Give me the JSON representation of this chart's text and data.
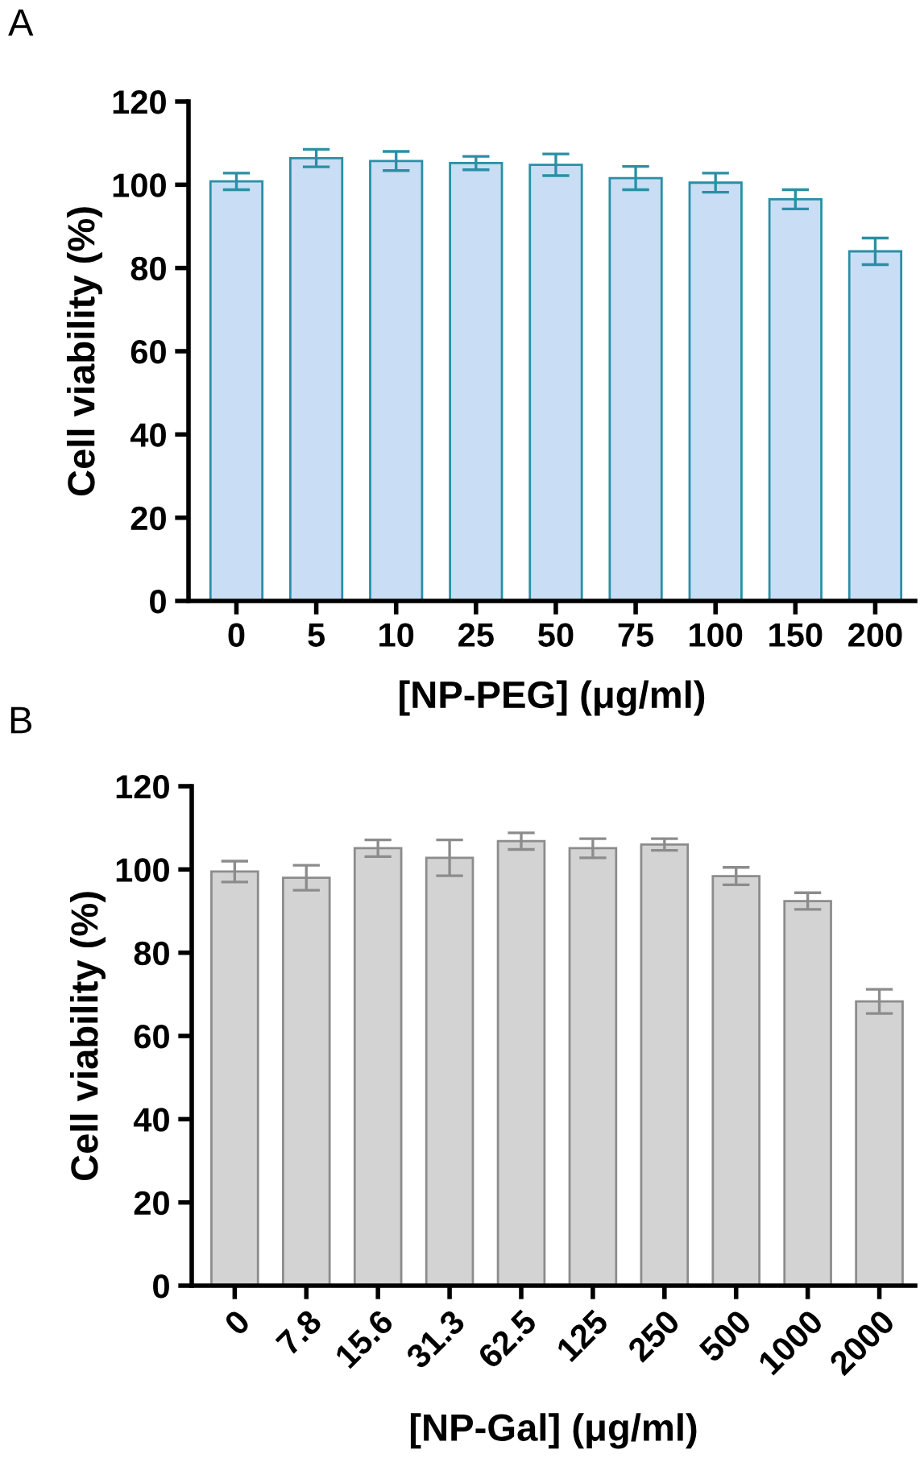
{
  "chart_data": [
    {
      "type": "bar",
      "annotations": [
        "A"
      ],
      "xlabel": "[NP-PEG] (μg/ml)",
      "ylabel": "Cell viability (%)",
      "categories": [
        "0",
        "5",
        "10",
        "25",
        "50",
        "75",
        "100",
        "150",
        "200"
      ],
      "values": [
        100.8,
        106.4,
        105.7,
        105.2,
        104.8,
        101.6,
        100.5,
        96.5,
        84.0
      ],
      "errors": [
        2.0,
        2.1,
        2.3,
        1.6,
        2.6,
        2.8,
        2.3,
        2.3,
        3.2
      ],
      "color": "#c9ddf5",
      "ylim": [
        0,
        120
      ],
      "yticks": [
        0,
        20,
        40,
        60,
        80,
        100,
        120
      ],
      "grid": false
    },
    {
      "type": "bar",
      "annotations": [
        "B"
      ],
      "xlabel": "[NP-Gal] (μg/ml)",
      "ylabel": "Cell viability (%)",
      "categories": [
        "0",
        "7.8",
        "15.6",
        "31.3",
        "62.5",
        "125",
        "250",
        "500",
        "1000",
        "2000"
      ],
      "values": [
        99.5,
        98.0,
        105.1,
        102.8,
        106.8,
        105.1,
        106.0,
        98.4,
        92.4,
        68.3
      ],
      "errors": [
        2.5,
        3.0,
        2.0,
        4.3,
        2.0,
        2.3,
        1.4,
        2.1,
        2.0,
        2.9
      ],
      "color": "#d3d3d3",
      "ylim": [
        0,
        120
      ],
      "yticks": [
        0,
        20,
        40,
        60,
        80,
        100,
        120
      ],
      "grid": false
    }
  ]
}
